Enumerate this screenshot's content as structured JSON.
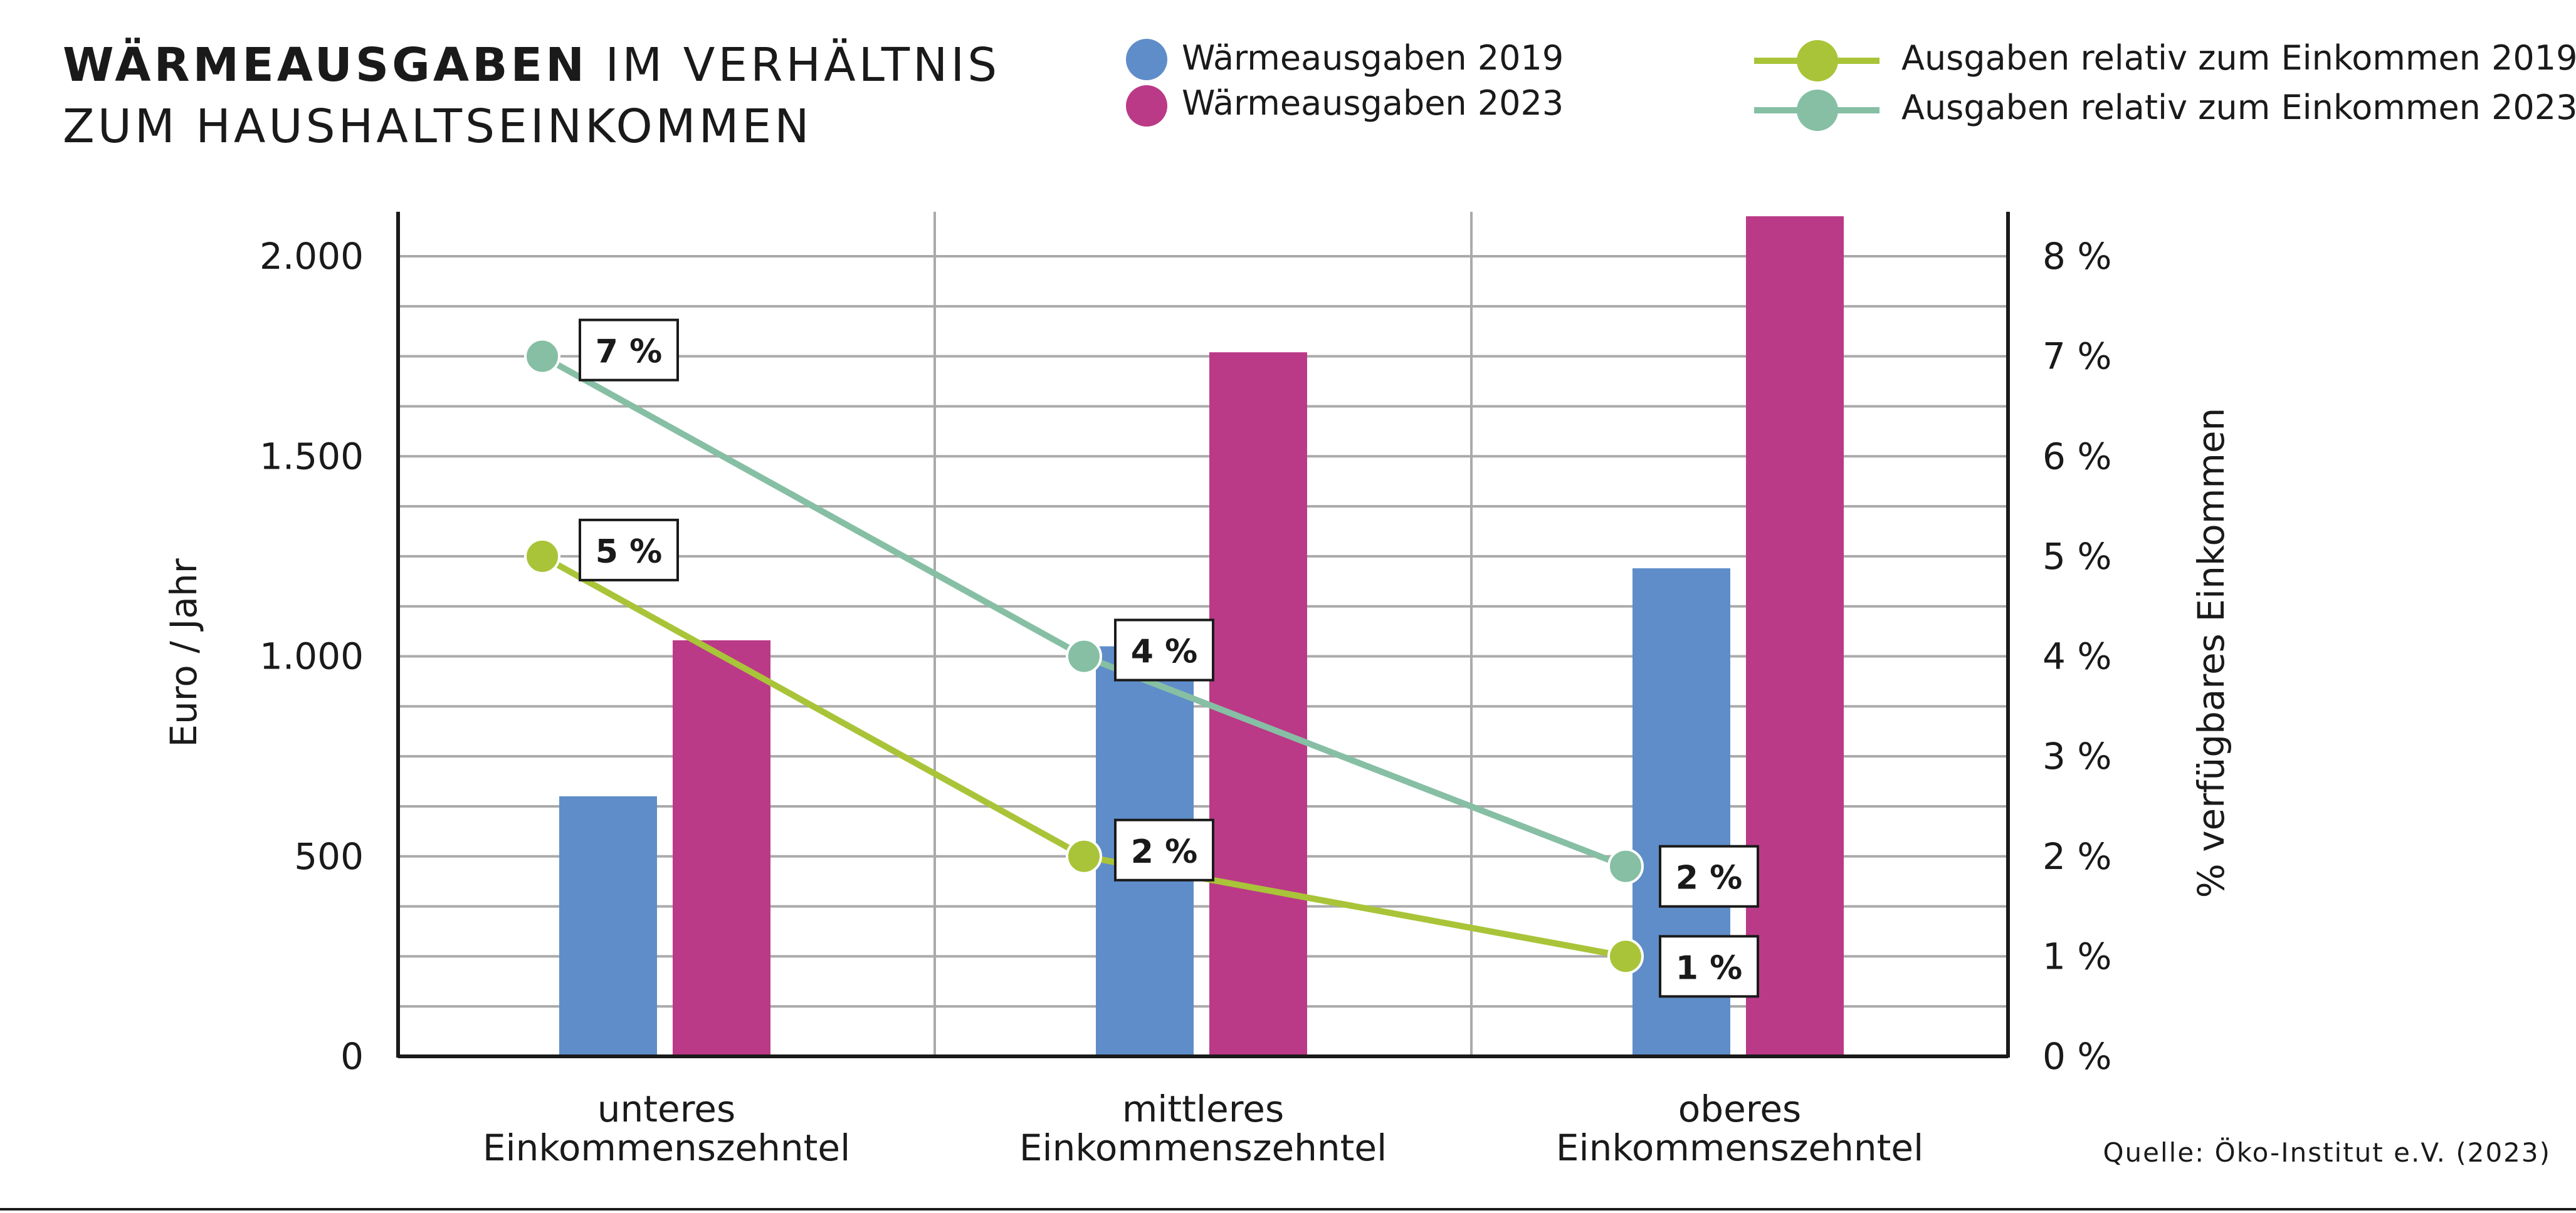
{
  "title": {
    "bold": "WÄRMEAUSGABEN",
    "rest_line1": " IM VERHÄLTNIS",
    "line2": "ZUM HAUSHALTSEINKOMMEN"
  },
  "legend": {
    "bars_2019": "Wärmeausgaben 2019",
    "bars_2023": "Wärmeausgaben 2023",
    "line_2019": "Ausgaben relativ zum Einkommen 2019",
    "line_2023": "Ausgaben relativ zum Einkommen 2023"
  },
  "colors": {
    "bar2019": "#5f8dc9",
    "bar2023": "#bb3a87",
    "line2019": "#a9c438",
    "line2023": "#86bfa4",
    "grid": "#aaaaaa",
    "axis": "#1a1a1a",
    "text": "#1a1a1a"
  },
  "source": "Quelle: Öko-Institut e.V. (2023)",
  "chart_data": {
    "type": "bar",
    "categories": [
      [
        "unteres",
        "Einkommenszehntel"
      ],
      [
        "mittleres",
        "Einkommenszehntel"
      ],
      [
        "oberes",
        "Einkommenszehntel"
      ]
    ],
    "ylabel": "Euro / Jahr",
    "y2label": "% verfügbares Einkommen",
    "ylim": [
      0,
      2000
    ],
    "y2lim": [
      0,
      8
    ],
    "yticks": [
      0,
      500,
      1000,
      1500,
      2000
    ],
    "ytick_labels": [
      "0",
      "500",
      "1.000",
      "1.500",
      "2.000"
    ],
    "y2ticks": [
      0,
      1,
      2,
      3,
      4,
      5,
      6,
      7,
      8
    ],
    "y2tick_labels": [
      "0 %",
      "1 %",
      "2 %",
      "3 %",
      "4 %",
      "5 %",
      "6 %",
      "7 %",
      "8 %"
    ],
    "grid": true,
    "series": [
      {
        "name": "Wärmeausgaben 2019",
        "kind": "bar",
        "axis": "left",
        "color": "#5f8dc9",
        "values": [
          650,
          1025,
          1220
        ]
      },
      {
        "name": "Wärmeausgaben 2023",
        "kind": "bar",
        "axis": "left",
        "color": "#bb3a87",
        "values": [
          1040,
          1760,
          2100
        ]
      },
      {
        "name": "Ausgaben relativ zum Einkommen 2019",
        "kind": "line",
        "axis": "right",
        "color": "#a9c438",
        "values": [
          5.0,
          2.0,
          1.0
        ],
        "labels": [
          "5 %",
          "2 %",
          "1 %"
        ]
      },
      {
        "name": "Ausgaben relativ zum Einkommen 2023",
        "kind": "line",
        "axis": "right",
        "color": "#86bfa4",
        "values": [
          7.0,
          4.0,
          1.9
        ],
        "labels": [
          "7 %",
          "4 %",
          "2 %"
        ]
      }
    ]
  }
}
